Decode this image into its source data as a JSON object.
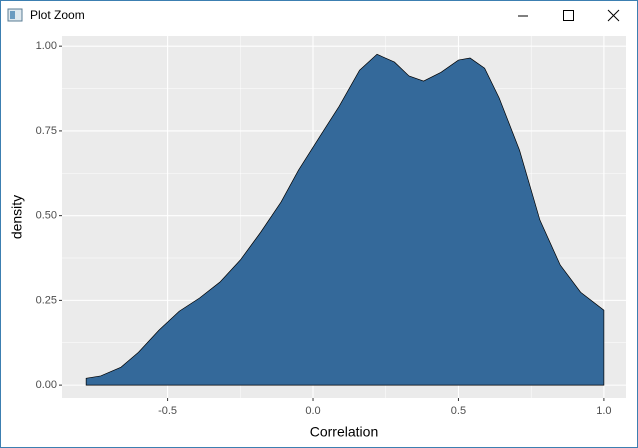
{
  "window": {
    "title": "Plot Zoom"
  },
  "chart_data": {
    "type": "area",
    "x_label": "Correlation",
    "y_label": "density",
    "x": [
      -0.78,
      -0.73,
      -0.66,
      -0.6,
      -0.53,
      -0.46,
      -0.39,
      -0.32,
      -0.25,
      -0.18,
      -0.11,
      -0.05,
      0.02,
      0.09,
      0.16,
      0.22,
      0.28,
      0.33,
      0.38,
      0.44,
      0.5,
      0.54,
      0.59,
      0.64,
      0.71,
      0.78,
      0.85,
      0.92,
      1.0
    ],
    "series": [
      {
        "color": "#34699a",
        "values": [
          0.02,
          0.027,
          0.053,
          0.097,
          0.162,
          0.218,
          0.257,
          0.304,
          0.369,
          0.451,
          0.54,
          0.634,
          0.729,
          0.823,
          0.929,
          0.976,
          0.953,
          0.912,
          0.897,
          0.923,
          0.959,
          0.965,
          0.935,
          0.847,
          0.693,
          0.487,
          0.354,
          0.274,
          0.221
        ]
      }
    ],
    "xlim": [
      -0.863,
      1.076
    ],
    "ylim": [
      -0.038,
      1.03
    ],
    "xticks": [
      -0.5,
      {
        "value": 0,
        "label": "0.0"
      },
      0.5,
      {
        "value": 1,
        "label": "1.0"
      }
    ],
    "yticks": [
      {
        "value": 0,
        "label": "0.00"
      },
      {
        "value": 0.25,
        "label": "0.25"
      },
      {
        "value": 0.5,
        "label": "0.50"
      },
      {
        "value": 0.75,
        "label": "0.75"
      },
      {
        "value": 1,
        "label": "1.00"
      }
    ],
    "grid": true,
    "minor_grid": true,
    "panel_color": "#ebebeb"
  }
}
